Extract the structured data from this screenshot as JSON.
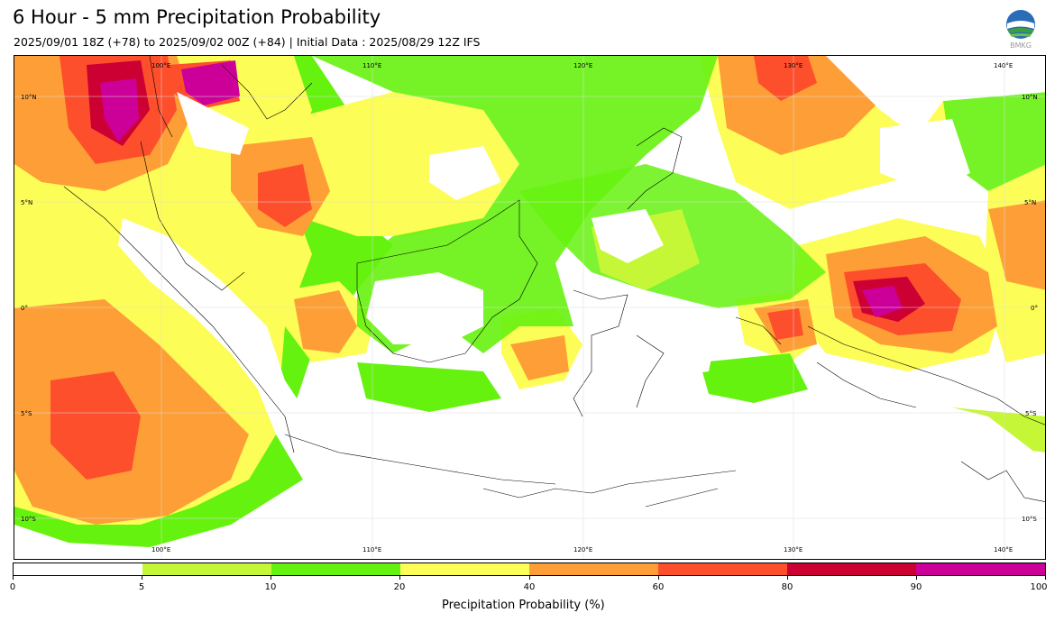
{
  "header": {
    "title": "6 Hour - 5 mm Precipitation Probability",
    "subtitle": "2025/09/01 18Z (+78) to 2025/09/02 00Z (+84) | Initial Data : 2025/08/29 12Z IFS",
    "logo_text": "BMKG"
  },
  "map": {
    "longitude_labels": [
      "100°E",
      "110°E",
      "120°E",
      "130°E",
      "140°E"
    ],
    "latitude_labels": [
      "10°N",
      "5°N",
      "0°",
      "5°S",
      "10°S"
    ]
  },
  "colorbar": {
    "label": "Precipitation Probability (%)",
    "ticks": [
      "0",
      "5",
      "10",
      "20",
      "40",
      "60",
      "80",
      "90",
      "100"
    ],
    "colors": [
      "#ffffff",
      "#c6f736",
      "#66f20f",
      "#fdfd57",
      "#fd9f36",
      "#fd4f2c",
      "#cc0033",
      "#cc0099"
    ]
  },
  "colors": {
    "prob_5_10": "#c6f736",
    "prob_10_20": "#66f20f",
    "prob_20_40": "#fdfd57",
    "prob_40_60": "#fd9f36",
    "prob_60_80": "#fd4f2c",
    "prob_80_90": "#cc0033",
    "prob_90_100": "#cc0099"
  }
}
